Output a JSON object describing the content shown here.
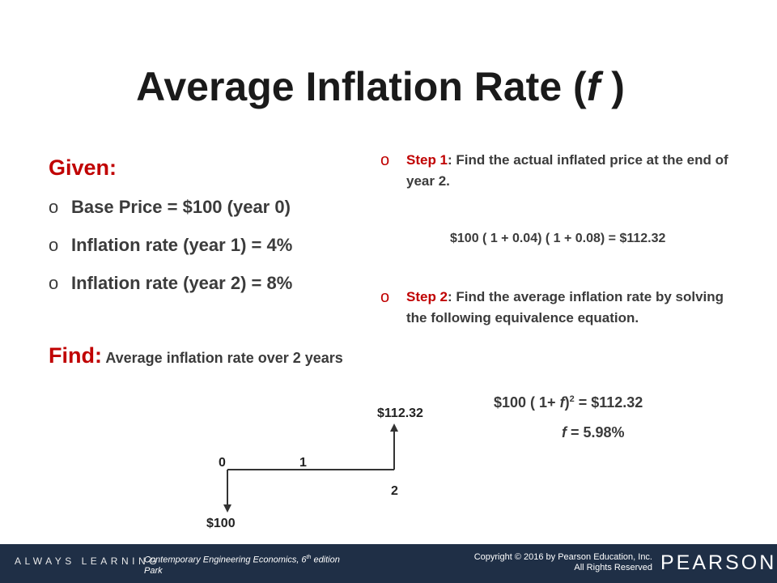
{
  "title": {
    "text": "Average Inflation Rate (",
    "var": "f",
    "close": " )"
  },
  "given": {
    "heading": "Given:",
    "bullet_glyph": "o",
    "items": [
      "Base Price = $100 (year 0)",
      "Inflation rate (year 1) = 4%",
      "Inflation rate (year 2) = 8%"
    ]
  },
  "find": {
    "heading": "Find:",
    "text": " Average inflation rate over 2 years"
  },
  "steps": [
    {
      "label": "Step 1",
      "text": ": Find the actual inflated price at the end of year 2."
    },
    {
      "label": "Step 2",
      "text": ": Find the average inflation rate by solving the following equivalence equation."
    }
  ],
  "equations": {
    "eq1": "$100 ( 1 + 0.04) ( 1 + 0.08) = $112.32",
    "eq2_a": "$100 ( 1+ ",
    "eq2_var": "f",
    "eq2_b": ")",
    "eq2_sup": "2",
    "eq2_c": " = $112.32",
    "eq3_var": "f",
    "eq3_rest": " = 5.98%"
  },
  "cash_flow": {
    "label_0": "0",
    "label_1": "1",
    "label_2": "2",
    "inflow": "$112.32",
    "outflow": "$100"
  },
  "footer": {
    "tagline": "ALWAYS LEARNING",
    "book_a": "Contemporary Engineering Economics, 6",
    "book_sup": "th",
    "book_b": " edition",
    "book_author": "Park",
    "copyright": "Copyright © 2016 by Pearson Education, Inc.",
    "rights": "All Rights Reserved",
    "brand": "PEARSON"
  },
  "colors": {
    "accent": "#c00000",
    "footer_bg": "#1f2f46",
    "text": "#3b3b3b"
  }
}
